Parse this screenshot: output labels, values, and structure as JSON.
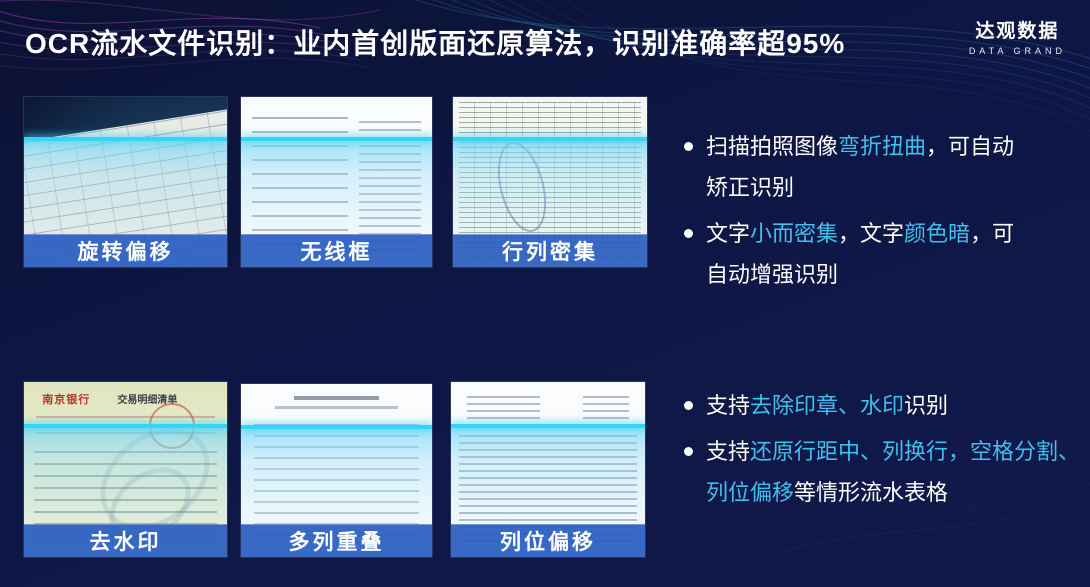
{
  "header": {
    "title": "OCR流水文件识别：业内首创版面还原算法，识别准确率超95%",
    "logo": {
      "cn": "达观数据",
      "en": "DATA GRAND"
    }
  },
  "thumbnails": [
    {
      "label": "旋转偏移"
    },
    {
      "label": "无线框"
    },
    {
      "label": "行列密集"
    },
    {
      "label": "去水印",
      "doc_bank": "南京银行",
      "doc_title": "交易明细清单"
    },
    {
      "label": "多列重叠"
    },
    {
      "label": "列位偏移"
    }
  ],
  "bullets_top": [
    {
      "lines": [
        [
          {
            "t": "扫描拍照图像"
          },
          {
            "t": "弯折扭曲",
            "hl": 1
          },
          {
            "t": "，可自动"
          }
        ],
        [
          {
            "t": "矫正识别"
          }
        ]
      ]
    },
    {
      "lines": [
        [
          {
            "t": "文字"
          },
          {
            "t": "小而密集",
            "hl": 1
          },
          {
            "t": "，文字"
          },
          {
            "t": "颜色暗",
            "hl": 1
          },
          {
            "t": "，可"
          }
        ],
        [
          {
            "t": "自动增强识别"
          }
        ]
      ]
    }
  ],
  "bullets_bottom": [
    {
      "lines": [
        [
          {
            "t": "支持"
          },
          {
            "t": "去除印章、水印",
            "hl": 1
          },
          {
            "t": "识别"
          }
        ]
      ]
    },
    {
      "lines": [
        [
          {
            "t": "支持"
          },
          {
            "t": "还原行距中、列换行，空格分割、",
            "hl": 1
          }
        ],
        [
          {
            "t": "列位偏移",
            "hl": 1
          },
          {
            "t": "等情形流水表格"
          }
        ]
      ]
    }
  ],
  "colors": {
    "background_navy": "#0e1644",
    "accent_cyan": "#41bfee",
    "caption_bar_blue": "#295fc1",
    "scan_line_cyan": "#38d4f6"
  }
}
